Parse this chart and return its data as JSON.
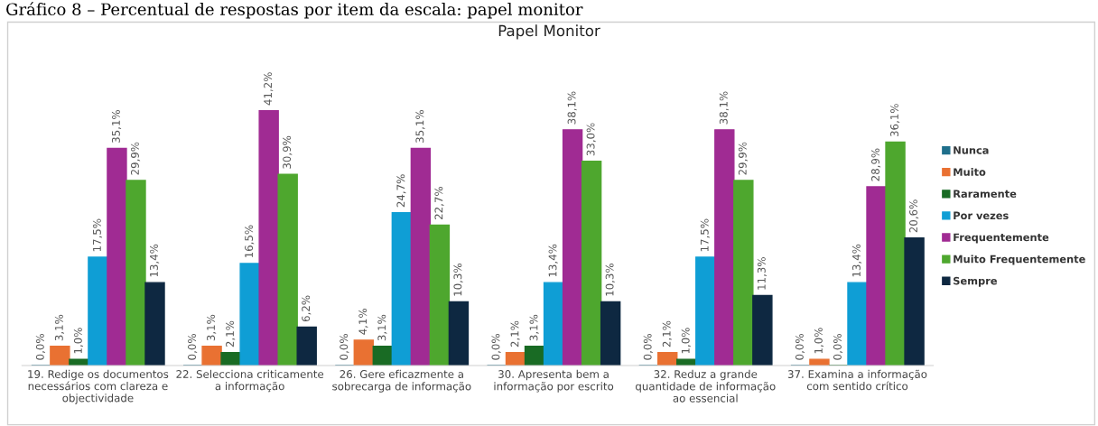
{
  "chart_data": {
    "type": "bar",
    "title": "Papel Monitor",
    "annotations": [
      "Gráfico 8 – Percentual de respostas por item da escala: papel monitor"
    ],
    "categories": [
      "19. Redige os documentos\nnecessários com clareza e\nobjectividade",
      "22. Selecciona criticamente\na informação",
      "26. Gere eficazmente a\nsobrecarga de informação",
      "30. Apresenta bem a\ninformação por escrito",
      "32. Reduz a grande\nquantidade de informação\nao essencial",
      "37. Examina a informação\ncom sentido crítico"
    ],
    "series": [
      {
        "name": "Nunca",
        "color": "#1f6f8b",
        "values": [
          0.0,
          0.0,
          0.0,
          0.0,
          0.0,
          0.0
        ],
        "value_labels": [
          "0,0%",
          "0,0%",
          "0,0%",
          "0,0%",
          "0,0%",
          "0,0%"
        ]
      },
      {
        "name": "Muito",
        "color": "#e97132",
        "values": [
          3.1,
          3.1,
          4.1,
          2.1,
          2.1,
          1.0
        ],
        "value_labels": [
          "3,1%",
          "3,1%",
          "4,1%",
          "2,1%",
          "2,1%",
          "1,0%"
        ]
      },
      {
        "name": "Raramente",
        "color": "#196b24",
        "values": [
          1.0,
          2.1,
          3.1,
          3.1,
          1.0,
          0.0
        ],
        "value_labels": [
          "1,0%",
          "2,1%",
          "3,1%",
          "3,1%",
          "1,0%",
          "0,0%"
        ]
      },
      {
        "name": "Por vezes",
        "color": "#0f9ed5",
        "values": [
          17.5,
          16.5,
          24.7,
          13.4,
          17.5,
          13.4
        ],
        "value_labels": [
          "17,5%",
          "16,5%",
          "24,7%",
          "13,4%",
          "17,5%",
          "13,4%"
        ]
      },
      {
        "name": "Frequentemente",
        "color": "#a02b93",
        "values": [
          35.1,
          41.2,
          35.1,
          38.1,
          38.1,
          28.9
        ],
        "value_labels": [
          "35,1%",
          "41,2%",
          "35,1%",
          "38,1%",
          "38,1%",
          "28,9%"
        ]
      },
      {
        "name": "Muito Frequentemente",
        "color": "#4ea72e",
        "values": [
          29.9,
          30.9,
          22.7,
          33.0,
          29.9,
          36.1
        ],
        "value_labels": [
          "29,9%",
          "30,9%",
          "22,7%",
          "33,0%",
          "29,9%",
          "36,1%"
        ]
      },
      {
        "name": "Sempre",
        "color": "#0e2841",
        "values": [
          13.4,
          6.2,
          10.3,
          10.3,
          11.3,
          20.6
        ],
        "value_labels": [
          "13,4%",
          "6,2%",
          "10,3%",
          "10,3%",
          "11,3%",
          "20,6%"
        ]
      }
    ],
    "grid": false,
    "legend": "right"
  }
}
